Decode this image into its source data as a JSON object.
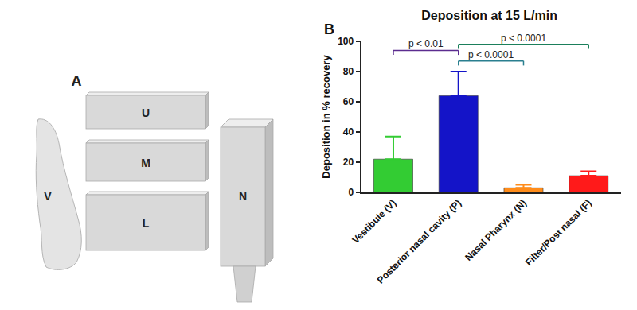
{
  "diagram": {
    "panel_label": "A",
    "parts": {
      "vestibule": "V",
      "upper": "U",
      "middle": "M",
      "lower": "L",
      "pharynx": "N"
    }
  },
  "chart_data": {
    "type": "bar",
    "title": "Deposition at 15 L/min",
    "y_label": "Deposition in % recovery",
    "categories": [
      "Vestibule (V)",
      "Posterior nasal cavity (P)",
      "Nasal Pharynx (N)",
      "Filter/Post nasal (F)"
    ],
    "values": [
      22,
      64,
      3,
      11
    ],
    "errors": [
      15,
      16,
      2,
      3
    ],
    "colors": [
      "#33cc33",
      "#1414c8",
      "#ff8c1a",
      "#ff1a1a"
    ],
    "ylim": [
      0,
      100
    ],
    "yticks": [
      0,
      20,
      40,
      60,
      80,
      100
    ],
    "grid": false,
    "annotations": [
      {
        "text": "B"
      },
      {
        "text": "p < 0.01",
        "from": "Vestibule (V)",
        "to": "Posterior nasal cavity (P)",
        "y": 94,
        "color": "#5b2c8f"
      },
      {
        "text": "p < 0.0001",
        "from": "Posterior nasal cavity (P)",
        "to": "Nasal Pharynx (N)",
        "y": 87,
        "color": "#2a7f8f"
      },
      {
        "text": "p < 0.0001",
        "from": "Posterior nasal cavity (P)",
        "to": "Filter/Post nasal (F)",
        "y": 98,
        "color": "#1b7f5b"
      }
    ]
  }
}
